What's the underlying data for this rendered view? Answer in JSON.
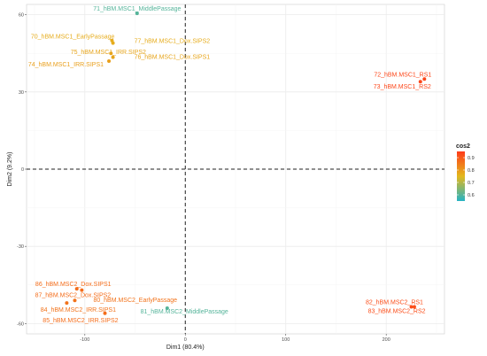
{
  "chart_data": {
    "type": "scatter",
    "xlabel": "Dim1 (80.4%)",
    "ylabel": "Dim2 (9.2%)",
    "xlim": [
      -158,
      258
    ],
    "ylim": [
      -64,
      64
    ],
    "x_ticks": [
      -100,
      0,
      100,
      200
    ],
    "y_ticks": [
      -60,
      -30,
      0,
      30,
      60
    ],
    "grid": true,
    "reference_lines": {
      "x": 0,
      "y": 0,
      "style": "dashed"
    },
    "legend": {
      "title": "cos2",
      "placement": "right",
      "min": 0.55,
      "max": 0.95,
      "ticks": [
        0.6,
        0.7,
        0.8,
        0.9
      ],
      "colors": [
        "#26b3c4",
        "#e3b81c",
        "#ff3b1a"
      ]
    },
    "points": [
      {
        "label": "71_hBM.MSC1_MiddlePassage",
        "x": -48,
        "y": 60.5,
        "cos2": 0.6,
        "anchor": "middle",
        "dx": 0,
        "dy": -3
      },
      {
        "label": "70_hBM.MSC1_EarlyPassage",
        "x": -73,
        "y": 50,
        "cos2": 0.77,
        "anchor": "end",
        "dx": 3,
        "dy": -2
      },
      {
        "label": "77_hBM.MSC1_Dox.SIPS2",
        "x": -72,
        "y": 49,
        "cos2": 0.77,
        "anchor": "start",
        "dx": 24,
        "dy": 0
      },
      {
        "label": "75_hBM.MSC1_IRR.SIPS2",
        "x": -74,
        "y": 45,
        "cos2": 0.78,
        "anchor": "middle",
        "dx": -3,
        "dy": 1
      },
      {
        "label": "76_hBM.MSC1_Dox.SIPS1",
        "x": -72,
        "y": 43.5,
        "cos2": 0.78,
        "anchor": "start",
        "dx": 24,
        "dy": 2
      },
      {
        "label": "74_hBM.MSC1_IRR.SIPS1",
        "x": -76,
        "y": 42,
        "cos2": 0.79,
        "anchor": "end",
        "dx": -6,
        "dy": 6
      },
      {
        "label": "72_hBM.MSC1_RS1",
        "x": 238,
        "y": 35,
        "cos2": 0.93,
        "anchor": "end",
        "dx": 8,
        "dy": -3
      },
      {
        "label": "73_hBM.MSC1_RS2",
        "x": 234,
        "y": 34,
        "cos2": 0.93,
        "anchor": "end",
        "dx": 12,
        "dy": 8
      },
      {
        "label": "86_hBM.MSC2_Dox.SIPS1",
        "x": -108,
        "y": -46.5,
        "cos2": 0.87,
        "anchor": "middle",
        "dx": -4,
        "dy": -3
      },
      {
        "label": "87_hBM.MSC2_Dox.SIPS2",
        "x": -103,
        "y": -47,
        "cos2": 0.87,
        "anchor": "middle",
        "dx": -10,
        "dy": 8
      },
      {
        "label": "80_hBM.MSC2_EarlyPassage",
        "x": -110,
        "y": -51,
        "cos2": 0.86,
        "anchor": "start",
        "dx": 21,
        "dy": 2
      },
      {
        "label": "84_hBM.MSC2_IRR.SIPS1",
        "x": -118,
        "y": -52,
        "cos2": 0.86,
        "anchor": "middle",
        "dx": 13,
        "dy": 10
      },
      {
        "label": "81_hBM.MSC2_MiddlePassage",
        "x": -18,
        "y": -54,
        "cos2": 0.6,
        "anchor": "end",
        "dx": 69,
        "dy": 6
      },
      {
        "label": "85_hBM.MSC2_IRR.SIPS2",
        "x": -80,
        "y": -56,
        "cos2": 0.87,
        "anchor": "end",
        "dx": 15,
        "dy": 10
      },
      {
        "label": "82_hBM.MSC2_RS1",
        "x": 228,
        "y": -53.5,
        "cos2": 0.92,
        "anchor": "end",
        "dx": 10,
        "dy": -3
      },
      {
        "label": "83_hBM.MSC2_RS2",
        "x": 225,
        "y": -53.5,
        "cos2": 0.92,
        "anchor": "end",
        "dx": 16,
        "dy": 7
      }
    ]
  }
}
